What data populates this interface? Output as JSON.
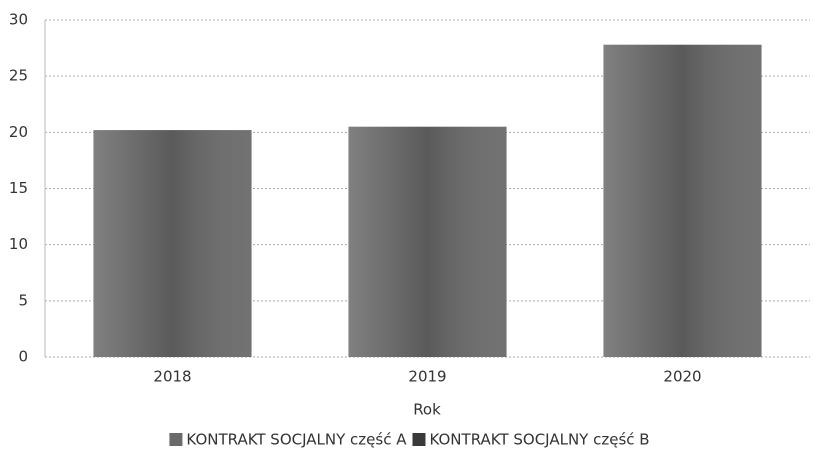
{
  "chart_data": {
    "type": "bar",
    "stacked": true,
    "categories": [
      "2018",
      "2019",
      "2020"
    ],
    "x_label": "Rok",
    "series": [
      {
        "name": "KONTRAKT SOCJALNY część A",
        "color": "#6a6a6a",
        "values": [
          20.2,
          20.5,
          27.8
        ]
      },
      {
        "name": "KONTRAKT SOCJALNY część B",
        "color": "#3a3a3a",
        "values": [
          0,
          0,
          0
        ]
      }
    ],
    "ylim": [
      0,
      30
    ],
    "yticks": [
      0,
      5,
      10,
      15,
      20,
      25,
      30
    ],
    "grid": true,
    "legend": "bottom"
  }
}
